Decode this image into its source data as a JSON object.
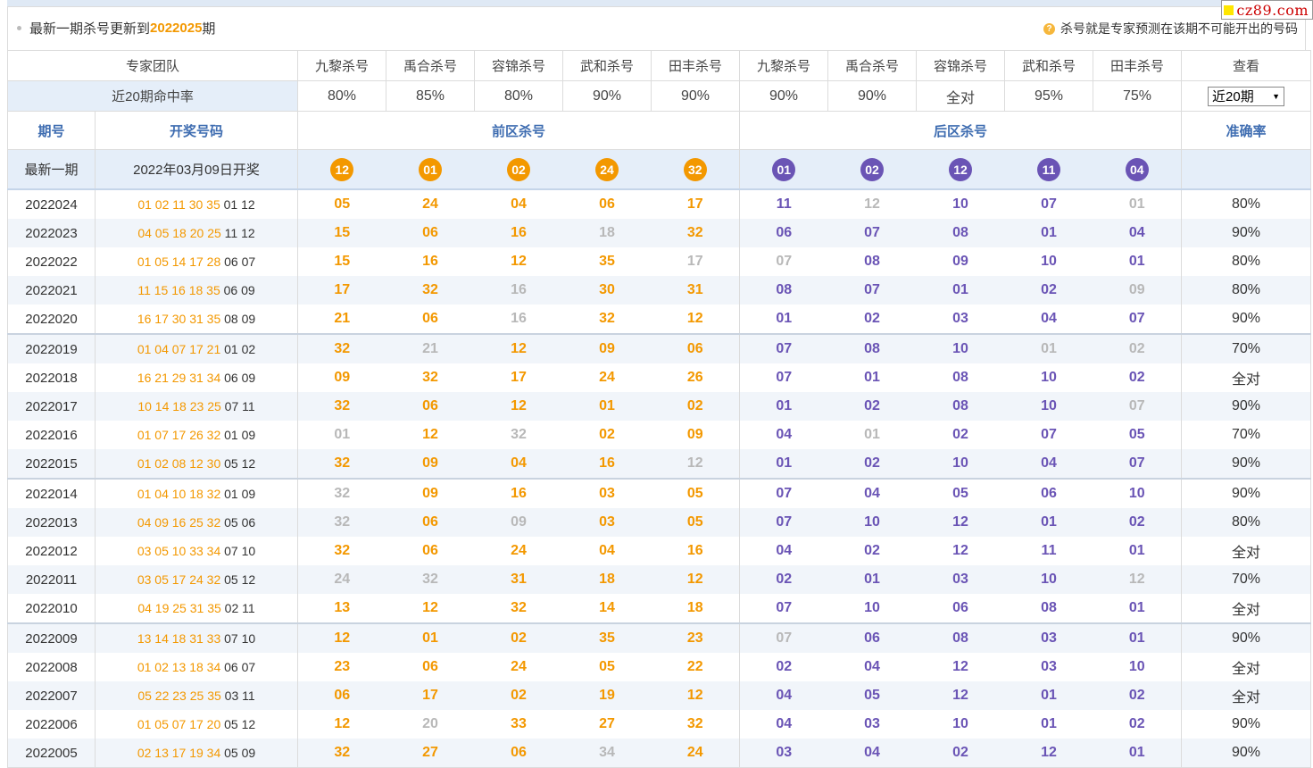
{
  "notice": {
    "prefix": "最新一期杀号更新到",
    "issue": "2022025",
    "suffix": "期",
    "help": "杀号就是专家预测在该期不可能开出的号码",
    "help_icon": "question-icon"
  },
  "watermark": "cz89.com",
  "colors": {
    "front": "#f39800",
    "back": "#6a54b5",
    "header": "#3f6db1",
    "miss": "#b8b8b8"
  },
  "expert_header": {
    "team_label": "专家团队",
    "experts": [
      "九黎杀号",
      "禹合杀号",
      "容锦杀号",
      "武和杀号",
      "田丰杀号",
      "九黎杀号",
      "禹合杀号",
      "容锦杀号",
      "武和杀号",
      "田丰杀号"
    ],
    "view_label": "查看"
  },
  "rate_row": {
    "label": "近20期命中率",
    "rates": [
      "80%",
      "85%",
      "80%",
      "90%",
      "90%",
      "90%",
      "90%",
      "全对",
      "95%",
      "75%"
    ],
    "select_value": "近20期"
  },
  "col_header": {
    "issue": "期号",
    "draw": "开奖号码",
    "front": "前区杀号",
    "back": "后区杀号",
    "accuracy": "准确率"
  },
  "latest": {
    "label": "最新一期",
    "date": "2022年03月09日开奖",
    "front": [
      "12",
      "01",
      "02",
      "24",
      "32"
    ],
    "back": [
      "01",
      "02",
      "12",
      "11",
      "04"
    ]
  },
  "rows": [
    {
      "issue": "2022024",
      "draw_front": "01 02 11 30 35",
      "draw_back": "01 12",
      "front": [
        "05",
        "24",
        "04",
        "06",
        "17"
      ],
      "back": [
        "11",
        "12",
        "10",
        "07",
        "01"
      ],
      "accuracy": "80%"
    },
    {
      "issue": "2022023",
      "draw_front": "04 05 18 20 25",
      "draw_back": "11 12",
      "front": [
        "15",
        "06",
        "16",
        "18",
        "32"
      ],
      "back": [
        "06",
        "07",
        "08",
        "01",
        "04"
      ],
      "accuracy": "90%"
    },
    {
      "issue": "2022022",
      "draw_front": "01 05 14 17 28",
      "draw_back": "06 07",
      "front": [
        "15",
        "16",
        "12",
        "35",
        "17"
      ],
      "back": [
        "07",
        "08",
        "09",
        "10",
        "01"
      ],
      "accuracy": "80%"
    },
    {
      "issue": "2022021",
      "draw_front": "11 15 16 18 35",
      "draw_back": "06 09",
      "front": [
        "17",
        "32",
        "16",
        "30",
        "31"
      ],
      "back": [
        "08",
        "07",
        "01",
        "02",
        "09"
      ],
      "accuracy": "80%"
    },
    {
      "issue": "2022020",
      "draw_front": "16 17 30 31 35",
      "draw_back": "08 09",
      "front": [
        "21",
        "06",
        "16",
        "32",
        "12"
      ],
      "back": [
        "01",
        "02",
        "03",
        "04",
        "07"
      ],
      "accuracy": "90%"
    },
    {
      "issue": "2022019",
      "draw_front": "01 04 07 17 21",
      "draw_back": "01 02",
      "front": [
        "32",
        "21",
        "12",
        "09",
        "06"
      ],
      "back": [
        "07",
        "08",
        "10",
        "01",
        "02"
      ],
      "accuracy": "70%"
    },
    {
      "issue": "2022018",
      "draw_front": "16 21 29 31 34",
      "draw_back": "06 09",
      "front": [
        "09",
        "32",
        "17",
        "24",
        "26"
      ],
      "back": [
        "07",
        "01",
        "08",
        "10",
        "02"
      ],
      "accuracy": "全对"
    },
    {
      "issue": "2022017",
      "draw_front": "10 14 18 23 25",
      "draw_back": "07 11",
      "front": [
        "32",
        "06",
        "12",
        "01",
        "02"
      ],
      "back": [
        "01",
        "02",
        "08",
        "10",
        "07"
      ],
      "accuracy": "90%"
    },
    {
      "issue": "2022016",
      "draw_front": "01 07 17 26 32",
      "draw_back": "01 09",
      "front": [
        "01",
        "12",
        "32",
        "02",
        "09"
      ],
      "back": [
        "04",
        "01",
        "02",
        "07",
        "05"
      ],
      "accuracy": "70%"
    },
    {
      "issue": "2022015",
      "draw_front": "01 02 08 12 30",
      "draw_back": "05 12",
      "front": [
        "32",
        "09",
        "04",
        "16",
        "12"
      ],
      "back": [
        "01",
        "02",
        "10",
        "04",
        "07"
      ],
      "accuracy": "90%"
    },
    {
      "issue": "2022014",
      "draw_front": "01 04 10 18 32",
      "draw_back": "01 09",
      "front": [
        "32",
        "09",
        "16",
        "03",
        "05"
      ],
      "back": [
        "07",
        "04",
        "05",
        "06",
        "10"
      ],
      "accuracy": "90%"
    },
    {
      "issue": "2022013",
      "draw_front": "04 09 16 25 32",
      "draw_back": "05 06",
      "front": [
        "32",
        "06",
        "09",
        "03",
        "05"
      ],
      "back": [
        "07",
        "10",
        "12",
        "01",
        "02"
      ],
      "accuracy": "80%"
    },
    {
      "issue": "2022012",
      "draw_front": "03 05 10 33 34",
      "draw_back": "07 10",
      "front": [
        "32",
        "06",
        "24",
        "04",
        "16"
      ],
      "back": [
        "04",
        "02",
        "12",
        "11",
        "01"
      ],
      "accuracy": "全对"
    },
    {
      "issue": "2022011",
      "draw_front": "03 05 17 24 32",
      "draw_back": "05 12",
      "front": [
        "24",
        "32",
        "31",
        "18",
        "12"
      ],
      "back": [
        "02",
        "01",
        "03",
        "10",
        "12"
      ],
      "accuracy": "70%"
    },
    {
      "issue": "2022010",
      "draw_front": "04 19 25 31 35",
      "draw_back": "02 11",
      "front": [
        "13",
        "12",
        "32",
        "14",
        "18"
      ],
      "back": [
        "07",
        "10",
        "06",
        "08",
        "01"
      ],
      "accuracy": "全对"
    },
    {
      "issue": "2022009",
      "draw_front": "13 14 18 31 33",
      "draw_back": "07 10",
      "front": [
        "12",
        "01",
        "02",
        "35",
        "23"
      ],
      "back": [
        "07",
        "06",
        "08",
        "03",
        "01"
      ],
      "accuracy": "90%"
    },
    {
      "issue": "2022008",
      "draw_front": "01 02 13 18 34",
      "draw_back": "06 07",
      "front": [
        "23",
        "06",
        "24",
        "05",
        "22"
      ],
      "back": [
        "02",
        "04",
        "12",
        "03",
        "10"
      ],
      "accuracy": "全对"
    },
    {
      "issue": "2022007",
      "draw_front": "05 22 23 25 35",
      "draw_back": "03 11",
      "front": [
        "06",
        "17",
        "02",
        "19",
        "12"
      ],
      "back": [
        "04",
        "05",
        "12",
        "01",
        "02"
      ],
      "accuracy": "全对"
    },
    {
      "issue": "2022006",
      "draw_front": "01 05 07 17 20",
      "draw_back": "05 12",
      "front": [
        "12",
        "20",
        "33",
        "27",
        "32"
      ],
      "back": [
        "04",
        "03",
        "10",
        "01",
        "02"
      ],
      "accuracy": "90%"
    },
    {
      "issue": "2022005",
      "draw_front": "02 13 17 19 34",
      "draw_back": "05 09",
      "front": [
        "32",
        "27",
        "06",
        "34",
        "24"
      ],
      "back": [
        "03",
        "04",
        "02",
        "12",
        "01"
      ],
      "accuracy": "90%"
    }
  ]
}
